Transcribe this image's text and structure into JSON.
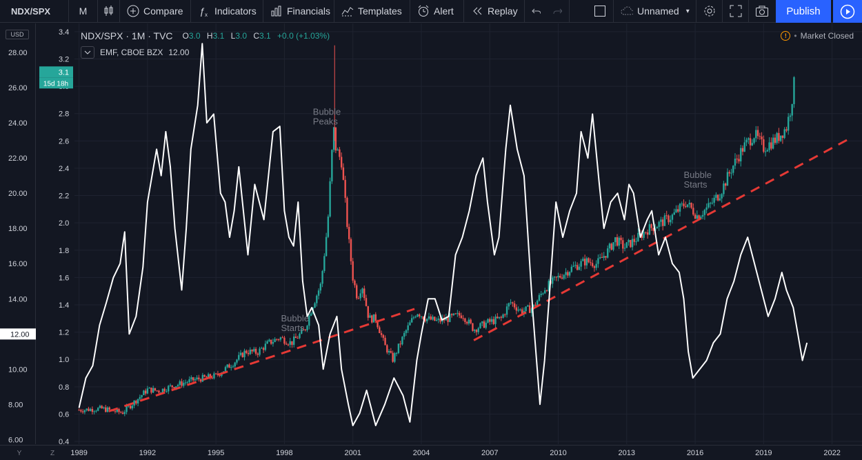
{
  "toolbar": {
    "symbol": "NDX/SPX",
    "interval": "M",
    "compare": "Compare",
    "indicators": "Indicators",
    "financials": "Financials",
    "templates": "Templates",
    "alert": "Alert",
    "replay": "Replay",
    "layout_name": "Unnamed",
    "publish": "Publish"
  },
  "legend": {
    "title": "NDX/SPX · 1M · TVC",
    "ohlc": {
      "o": "O3.0",
      "h": "H3.1",
      "l": "L3.0",
      "c": "C3.1",
      "chg": "+0.0 (+1.03%)"
    },
    "indicator": "EMF, CBOE BZX",
    "indicator_value": "12.00"
  },
  "market_status": "Market Closed",
  "left_axis_unit": "USD",
  "bottom_buttons": [
    "Y",
    "Z"
  ],
  "colors": {
    "up": "#26a69a",
    "down": "#ef5350",
    "line": "#ffffff",
    "trend": "#e53935",
    "accent": "#2962ff"
  },
  "chart_data": {
    "type": "candlestick",
    "series_label": "NDX/SPX",
    "right_axis": {
      "ylim": [
        0.38,
        3.46
      ],
      "ticks": [
        "3.4",
        "3.2",
        "3.0",
        "2.8",
        "2.6",
        "2.4",
        "2.2",
        "2.0",
        "1.8",
        "1.6",
        "1.4",
        "1.2",
        "1.0",
        "0.8",
        "0.6",
        "0.4"
      ]
    },
    "left_axis": {
      "ylim": [
        5.74,
        29.65
      ],
      "ticks": [
        "28.00",
        "26.00",
        "24.00",
        "22.00",
        "20.00",
        "18.00",
        "16.00",
        "14.00",
        "12.00",
        "10.00",
        "8.00",
        "6.00"
      ]
    },
    "x_axis": {
      "range": [
        1988.8,
        2023.1
      ],
      "ticks": [
        "1989",
        "1992",
        "1995",
        "1998",
        "2001",
        "2004",
        "2007",
        "2010",
        "2013",
        "2016",
        "2019",
        "2022"
      ]
    },
    "price_badges": {
      "price": "3.1",
      "countdown": "15d 18h",
      "left": "12.00"
    },
    "ratio_anchors": [
      [
        1989.0,
        0.63
      ],
      [
        1990.0,
        0.64
      ],
      [
        1990.9,
        0.61
      ],
      [
        1991.5,
        0.7
      ],
      [
        1992.0,
        0.78
      ],
      [
        1992.5,
        0.77
      ],
      [
        1993.0,
        0.8
      ],
      [
        1994.0,
        0.85
      ],
      [
        1995.0,
        0.88
      ],
      [
        1995.8,
        0.98
      ],
      [
        1996.3,
        1.06
      ],
      [
        1996.8,
        1.05
      ],
      [
        1997.3,
        1.12
      ],
      [
        1997.8,
        1.16
      ],
      [
        1998.3,
        1.12
      ],
      [
        1998.9,
        1.22
      ],
      [
        1999.2,
        1.38
      ],
      [
        1999.6,
        1.55
      ],
      [
        1999.9,
        2.0
      ],
      [
        2000.15,
        2.7
      ],
      [
        2000.25,
        2.55
      ],
      [
        2000.5,
        2.45
      ],
      [
        2000.8,
        1.9
      ],
      [
        2001.0,
        1.6
      ],
      [
        2001.2,
        1.45
      ],
      [
        2001.4,
        1.55
      ],
      [
        2001.7,
        1.3
      ],
      [
        2002.0,
        1.3
      ],
      [
        2002.4,
        1.1
      ],
      [
        2002.75,
        1.0
      ],
      [
        2003.3,
        1.2
      ],
      [
        2003.8,
        1.35
      ],
      [
        2004.2,
        1.3
      ],
      [
        2004.7,
        1.28
      ],
      [
        2005.2,
        1.3
      ],
      [
        2005.8,
        1.33
      ],
      [
        2006.3,
        1.22
      ],
      [
        2006.9,
        1.27
      ],
      [
        2007.5,
        1.3
      ],
      [
        2007.9,
        1.42
      ],
      [
        2008.4,
        1.35
      ],
      [
        2008.9,
        1.38
      ],
      [
        2009.4,
        1.52
      ],
      [
        2010.0,
        1.6
      ],
      [
        2010.6,
        1.67
      ],
      [
        2011.2,
        1.72
      ],
      [
        2011.7,
        1.7
      ],
      [
        2012.2,
        1.8
      ],
      [
        2012.5,
        1.88
      ],
      [
        2012.9,
        1.82
      ],
      [
        2013.4,
        1.88
      ],
      [
        2013.9,
        1.95
      ],
      [
        2014.5,
        2.0
      ],
      [
        2015.0,
        2.05
      ],
      [
        2015.6,
        2.15
      ],
      [
        2016.1,
        2.05
      ],
      [
        2016.6,
        2.12
      ],
      [
        2017.1,
        2.22
      ],
      [
        2017.6,
        2.4
      ],
      [
        2018.1,
        2.55
      ],
      [
        2018.6,
        2.65
      ],
      [
        2019.0,
        2.55
      ],
      [
        2019.6,
        2.62
      ],
      [
        2020.0,
        2.7
      ],
      [
        2020.2,
        2.85
      ],
      [
        2020.4,
        3.1
      ]
    ],
    "emf_line": [
      [
        1989.0,
        7.8
      ],
      [
        1989.3,
        9.5
      ],
      [
        1989.6,
        10.2
      ],
      [
        1989.9,
        12.5
      ],
      [
        1990.2,
        13.8
      ],
      [
        1990.5,
        15.2
      ],
      [
        1990.8,
        16.0
      ],
      [
        1991.0,
        17.8
      ],
      [
        1991.2,
        12.0
      ],
      [
        1991.5,
        13.0
      ],
      [
        1991.8,
        15.8
      ],
      [
        1992.0,
        19.5
      ],
      [
        1992.2,
        21.0
      ],
      [
        1992.4,
        22.5
      ],
      [
        1992.6,
        21.0
      ],
      [
        1992.8,
        23.5
      ],
      [
        1993.0,
        21.5
      ],
      [
        1993.2,
        18.0
      ],
      [
        1993.5,
        14.5
      ],
      [
        1993.7,
        18.0
      ],
      [
        1993.9,
        22.5
      ],
      [
        1994.2,
        25.0
      ],
      [
        1994.4,
        28.5
      ],
      [
        1994.6,
        24.0
      ],
      [
        1994.9,
        24.5
      ],
      [
        1995.2,
        20.0
      ],
      [
        1995.4,
        19.5
      ],
      [
        1995.6,
        17.5
      ],
      [
        1995.8,
        19.0
      ],
      [
        1996.0,
        21.5
      ],
      [
        1996.2,
        19.0
      ],
      [
        1996.4,
        16.5
      ],
      [
        1996.7,
        20.5
      ],
      [
        1996.9,
        19.5
      ],
      [
        1997.1,
        18.5
      ],
      [
        1997.3,
        21.0
      ],
      [
        1997.5,
        23.5
      ],
      [
        1997.8,
        23.8
      ],
      [
        1998.0,
        19.0
      ],
      [
        1998.2,
        17.5
      ],
      [
        1998.4,
        17.0
      ],
      [
        1998.6,
        19.5
      ],
      [
        1998.8,
        15.0
      ],
      [
        1999.0,
        13.0
      ],
      [
        1999.2,
        13.5
      ],
      [
        1999.5,
        12.5
      ],
      [
        1999.7,
        10.0
      ],
      [
        2000.0,
        12.0
      ],
      [
        2000.3,
        13.0
      ],
      [
        2000.5,
        10.0
      ],
      [
        2000.8,
        8.0
      ],
      [
        2001.0,
        6.8
      ],
      [
        2001.3,
        7.5
      ],
      [
        2001.6,
        8.8
      ],
      [
        2002.0,
        6.8
      ],
      [
        2002.4,
        8.0
      ],
      [
        2002.8,
        9.5
      ],
      [
        2003.2,
        8.5
      ],
      [
        2003.5,
        7.0
      ],
      [
        2003.8,
        10.5
      ],
      [
        2004.0,
        12.0
      ],
      [
        2004.3,
        14.0
      ],
      [
        2004.6,
        14.0
      ],
      [
        2004.9,
        12.8
      ],
      [
        2005.2,
        13.0
      ],
      [
        2005.5,
        16.5
      ],
      [
        2005.8,
        17.5
      ],
      [
        2006.1,
        19.0
      ],
      [
        2006.4,
        21.0
      ],
      [
        2006.7,
        22.0
      ],
      [
        2006.9,
        19.5
      ],
      [
        2007.2,
        16.5
      ],
      [
        2007.4,
        17.5
      ],
      [
        2007.7,
        22.5
      ],
      [
        2007.9,
        25.0
      ],
      [
        2008.2,
        22.5
      ],
      [
        2008.5,
        21.0
      ],
      [
        2008.7,
        17.0
      ],
      [
        2008.9,
        13.0
      ],
      [
        2009.2,
        8.0
      ],
      [
        2009.4,
        10.5
      ],
      [
        2009.6,
        14.0
      ],
      [
        2009.9,
        19.5
      ],
      [
        2010.2,
        17.5
      ],
      [
        2010.5,
        19.0
      ],
      [
        2010.8,
        20.0
      ],
      [
        2011.0,
        23.5
      ],
      [
        2011.3,
        22.0
      ],
      [
        2011.5,
        24.5
      ],
      [
        2011.8,
        20.5
      ],
      [
        2012.0,
        18.0
      ],
      [
        2012.3,
        19.5
      ],
      [
        2012.6,
        20.0
      ],
      [
        2012.9,
        18.5
      ],
      [
        2013.1,
        20.5
      ],
      [
        2013.3,
        20.0
      ],
      [
        2013.6,
        17.5
      ],
      [
        2013.9,
        18.5
      ],
      [
        2014.1,
        19.0
      ],
      [
        2014.4,
        16.5
      ],
      [
        2014.7,
        17.5
      ],
      [
        2015.0,
        16.0
      ],
      [
        2015.3,
        15.5
      ],
      [
        2015.5,
        14.0
      ],
      [
        2015.7,
        11.0
      ],
      [
        2015.9,
        9.5
      ],
      [
        2016.2,
        10.0
      ],
      [
        2016.5,
        10.5
      ],
      [
        2016.8,
        11.5
      ],
      [
        2017.1,
        12.0
      ],
      [
        2017.4,
        14.0
      ],
      [
        2017.7,
        15.0
      ],
      [
        2018.0,
        16.5
      ],
      [
        2018.3,
        17.5
      ],
      [
        2018.6,
        16.0
      ],
      [
        2018.9,
        14.5
      ],
      [
        2019.2,
        13.0
      ],
      [
        2019.5,
        14.0
      ],
      [
        2019.8,
        15.5
      ],
      [
        2020.0,
        14.5
      ],
      [
        2020.3,
        13.5
      ],
      [
        2020.5,
        12.0
      ],
      [
        2020.7,
        10.5
      ],
      [
        2020.9,
        11.5
      ]
    ],
    "trendlines": [
      {
        "points": [
          [
            1990.3,
            0.62
          ],
          [
            2003.7,
            1.37
          ]
        ]
      },
      {
        "points": [
          [
            2006.3,
            1.14
          ],
          [
            2022.8,
            2.62
          ]
        ]
      }
    ],
    "annotations": [
      {
        "text": "Bubble Peaks",
        "x": 1999.25,
        "y": 2.79
      },
      {
        "text": "Bubble Starts",
        "x": 1997.85,
        "y": 1.28
      },
      {
        "text": "Bubble Starts",
        "x": 2015.5,
        "y": 2.33
      }
    ]
  }
}
